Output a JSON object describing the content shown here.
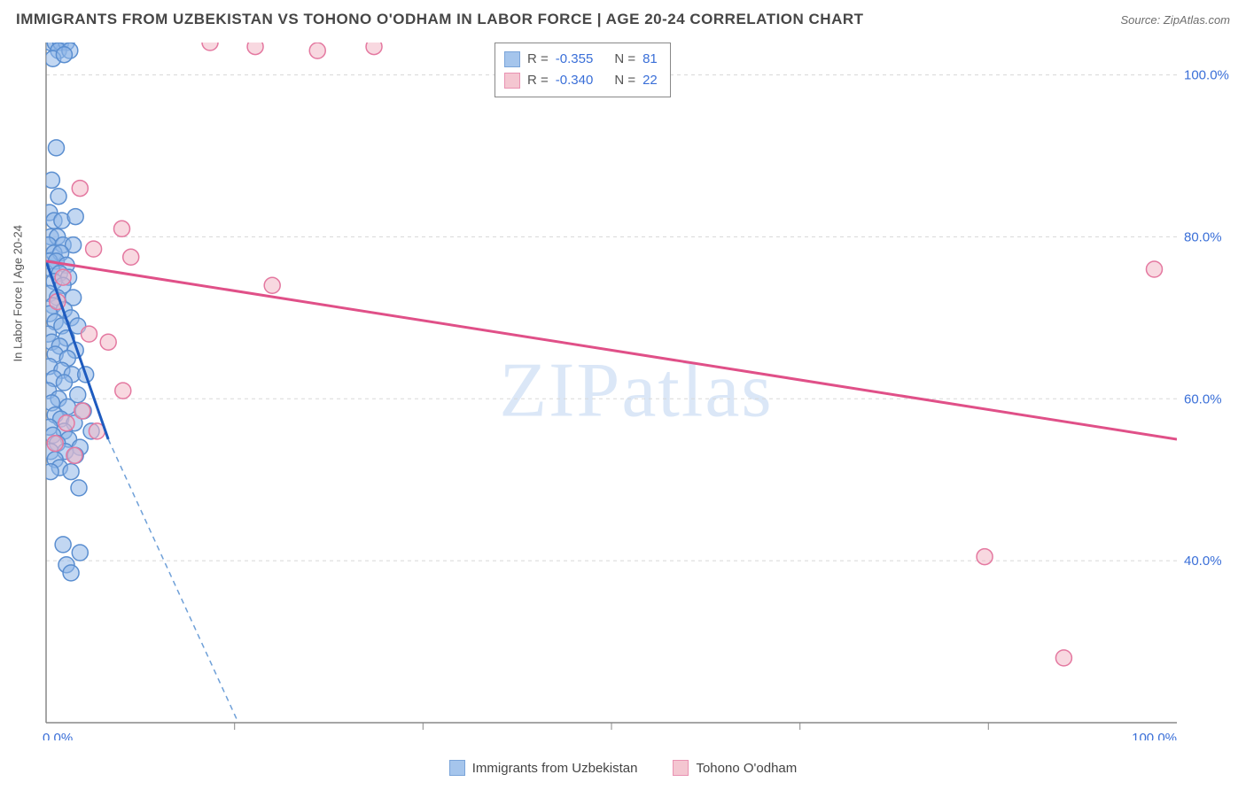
{
  "header": {
    "title": "IMMIGRANTS FROM UZBEKISTAN VS TOHONO O'ODHAM IN LABOR FORCE | AGE 20-24 CORRELATION CHART",
    "source": "Source: ZipAtlas.com"
  },
  "watermark": "ZIPatlas",
  "chart": {
    "type": "scatter",
    "y_axis_title": "In Labor Force | Age 20-24",
    "xlim": [
      0,
      100
    ],
    "ylim": [
      20,
      104
    ],
    "x_ticks": [
      0,
      100
    ],
    "x_tick_labels": [
      "0.0%",
      "100.0%"
    ],
    "x_minor_ticks": [
      16.67,
      33.33,
      50,
      66.67,
      83.33
    ],
    "y_ticks": [
      40,
      60,
      80,
      100
    ],
    "y_tick_labels": [
      "40.0%",
      "60.0%",
      "80.0%",
      "100.0%"
    ],
    "grid_color": "#d8d8d8",
    "axis_color": "#888888",
    "background_color": "#ffffff",
    "axis_label_color": "#3a6fd8",
    "axis_label_fontsize": 15,
    "marker_radius": 9,
    "marker_stroke_width": 1.5,
    "line_width": 3,
    "series": [
      {
        "name": "Immigrants from Uzbekistan",
        "fill_color": "#8fb7e8",
        "fill_opacity": 0.55,
        "stroke_color": "#5a8ed0",
        "line_color": "#1e5bbf",
        "dash_color": "#6fa0d8",
        "R": "-0.355",
        "N": "81",
        "trend": {
          "x1": 0,
          "y1": 77,
          "x2": 5.5,
          "y2": 55
        },
        "trend_extend": {
          "x1": 5.5,
          "y1": 55,
          "x2": 17,
          "y2": 20
        },
        "points": [
          [
            0.4,
            104
          ],
          [
            0.8,
            104
          ],
          [
            1.3,
            104
          ],
          [
            1.8,
            104
          ],
          [
            1.1,
            103
          ],
          [
            2.1,
            103
          ],
          [
            0.6,
            102
          ],
          [
            1.6,
            102.5
          ],
          [
            0.9,
            91
          ],
          [
            0.5,
            87
          ],
          [
            1.1,
            85
          ],
          [
            0.3,
            83
          ],
          [
            0.7,
            82
          ],
          [
            1.4,
            82
          ],
          [
            2.6,
            82.5
          ],
          [
            0.4,
            80
          ],
          [
            1.0,
            80
          ],
          [
            0.2,
            79
          ],
          [
            1.5,
            79
          ],
          [
            2.4,
            79
          ],
          [
            0.7,
            78
          ],
          [
            1.3,
            78
          ],
          [
            0.3,
            77
          ],
          [
            0.9,
            77
          ],
          [
            1.8,
            76.5
          ],
          [
            0.5,
            76
          ],
          [
            1.2,
            75.5
          ],
          [
            2.0,
            75
          ],
          [
            0.7,
            74.5
          ],
          [
            1.5,
            74
          ],
          [
            0.3,
            73
          ],
          [
            1.0,
            72.5
          ],
          [
            2.4,
            72.5
          ],
          [
            0.6,
            71.5
          ],
          [
            1.6,
            71
          ],
          [
            0.3,
            70.5
          ],
          [
            2.2,
            70
          ],
          [
            0.8,
            69.5
          ],
          [
            1.4,
            69
          ],
          [
            2.8,
            69
          ],
          [
            0.2,
            68
          ],
          [
            1.8,
            67.5
          ],
          [
            0.5,
            67
          ],
          [
            1.2,
            66.5
          ],
          [
            2.6,
            66
          ],
          [
            0.8,
            65.5
          ],
          [
            1.9,
            65
          ],
          [
            0.3,
            64
          ],
          [
            1.4,
            63.5
          ],
          [
            2.3,
            63
          ],
          [
            3.5,
            63
          ],
          [
            0.7,
            62.5
          ],
          [
            1.6,
            62
          ],
          [
            0.2,
            61
          ],
          [
            2.8,
            60.5
          ],
          [
            1.1,
            60
          ],
          [
            0.5,
            59.5
          ],
          [
            1.9,
            59
          ],
          [
            3.3,
            58.5
          ],
          [
            0.8,
            58
          ],
          [
            1.3,
            57.5
          ],
          [
            2.5,
            57
          ],
          [
            0.3,
            56.5
          ],
          [
            1.6,
            56
          ],
          [
            4.0,
            56
          ],
          [
            0.6,
            55.5
          ],
          [
            2.0,
            55
          ],
          [
            1.0,
            54.5
          ],
          [
            3.0,
            54
          ],
          [
            0.4,
            53.5
          ],
          [
            1.7,
            53.5
          ],
          [
            2.6,
            53
          ],
          [
            0.8,
            52.5
          ],
          [
            1.2,
            51.5
          ],
          [
            2.2,
            51
          ],
          [
            0.4,
            51
          ],
          [
            2.9,
            49
          ],
          [
            1.5,
            42
          ],
          [
            3.0,
            41
          ],
          [
            1.8,
            39.5
          ],
          [
            2.2,
            38.5
          ]
        ]
      },
      {
        "name": "Tohono O'odham",
        "fill_color": "#f2b8c6",
        "fill_opacity": 0.55,
        "stroke_color": "#e478a0",
        "line_color": "#e05088",
        "R": "-0.340",
        "N": "22",
        "trend": {
          "x1": 0,
          "y1": 77,
          "x2": 100,
          "y2": 55
        },
        "points": [
          [
            14.5,
            104
          ],
          [
            18.5,
            103.5
          ],
          [
            24,
            103
          ],
          [
            29,
            103.5
          ],
          [
            3.0,
            86
          ],
          [
            6.7,
            81
          ],
          [
            4.2,
            78.5
          ],
          [
            7.5,
            77.5
          ],
          [
            20,
            74
          ],
          [
            98,
            76
          ],
          [
            1.5,
            75
          ],
          [
            1.0,
            72
          ],
          [
            3.8,
            68
          ],
          [
            5.5,
            67
          ],
          [
            6.8,
            61
          ],
          [
            3.2,
            58.5
          ],
          [
            1.8,
            57
          ],
          [
            4.5,
            56
          ],
          [
            0.8,
            54.5
          ],
          [
            2.5,
            53
          ],
          [
            83,
            40.5
          ],
          [
            90,
            28
          ]
        ]
      }
    ]
  },
  "legend": {
    "series1_label": "Immigrants from Uzbekistan",
    "series2_label": "Tohono O'odham"
  },
  "stat_box": {
    "r_label": "R =",
    "n_label": "N ="
  }
}
